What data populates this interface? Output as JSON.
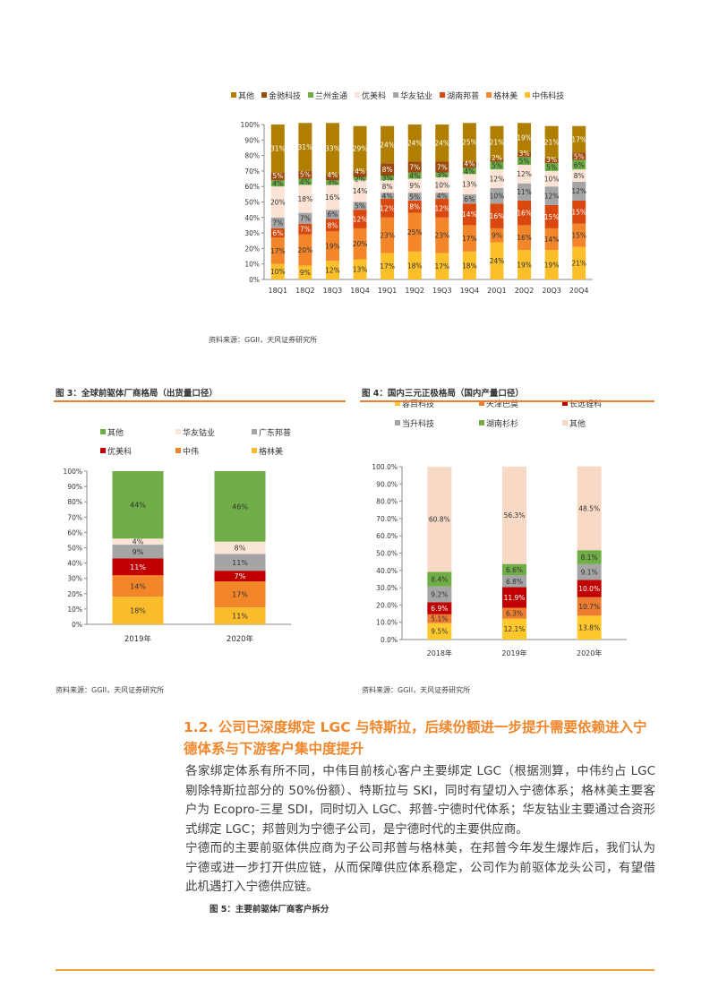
{
  "charts": {
    "fig_top": {
      "source": "资料来源：GGII，天风证券研究所"
    },
    "fig3": {
      "caption": "图 3：全球前驱体厂商格局（出货量口径）",
      "source": "资料来源：GGII，天风证券研究所"
    },
    "fig4": {
      "caption": "图 4：国内三元正极格局（国内产量口径）",
      "source": "资料来源：GGII，天风证券研究所"
    }
  },
  "chart_data": [
    {
      "type": "bar",
      "stacked": true,
      "title": "",
      "xlabel": "",
      "ylabel": "",
      "ylim": [
        0,
        100
      ],
      "grid": false,
      "legend_position": "top",
      "yticks": [
        "0%",
        "10%",
        "20%",
        "30%",
        "40%",
        "50%",
        "60%",
        "70%",
        "80%",
        "90%",
        "100%"
      ],
      "categories": [
        "18Q1",
        "18Q2",
        "18Q3",
        "18Q4",
        "19Q1",
        "19Q2",
        "19Q3",
        "19Q4",
        "20Q1",
        "20Q2",
        "20Q3",
        "20Q4"
      ],
      "legend_order": [
        "其他",
        "金驰科技",
        "兰州金通",
        "优美科",
        "华友钴业",
        "湖南邦普",
        "格林美",
        "中伟科技"
      ],
      "series": [
        {
          "name": "中伟科技",
          "color": "#FBBF2A",
          "values": [
            10,
            9,
            12,
            13,
            17,
            18,
            17,
            18,
            24,
            19,
            19,
            21
          ]
        },
        {
          "name": "格林美",
          "color": "#F3862A",
          "values": [
            17,
            20,
            19,
            20,
            23,
            25,
            23,
            17,
            9,
            16,
            14,
            15
          ]
        },
        {
          "name": "湖南邦普",
          "color": "#D9480F",
          "values": [
            6,
            7,
            8,
            12,
            12,
            8,
            12,
            14,
            16,
            16,
            15,
            15
          ]
        },
        {
          "name": "华友钴业",
          "color": "#A5A5A5",
          "values": [
            7,
            7,
            6,
            5,
            4,
            5,
            4,
            6,
            10,
            11,
            12,
            12
          ]
        },
        {
          "name": "优美科",
          "color": "#FBE4D6",
          "values": [
            20,
            18,
            16,
            14,
            8,
            9,
            10,
            13,
            12,
            12,
            10,
            8
          ]
        },
        {
          "name": "兰州金通",
          "color": "#6AAE45",
          "values": [
            4,
            4,
            3,
            2,
            3,
            4,
            3,
            4,
            5,
            5,
            5,
            6
          ]
        },
        {
          "name": "金驰科技",
          "color": "#9C4A0C",
          "values": [
            5,
            5,
            4,
            4,
            8,
            7,
            7,
            4,
            2,
            3,
            3,
            5
          ]
        },
        {
          "name": "其他",
          "color": "#B07F00",
          "values": [
            31,
            31,
            33,
            29,
            24,
            24,
            24,
            25,
            21,
            19,
            21,
            17
          ]
        }
      ]
    },
    {
      "type": "bar",
      "stacked": true,
      "title": "",
      "xlabel": "",
      "ylabel": "",
      "ylim": [
        0,
        100
      ],
      "grid": false,
      "legend_position": "top",
      "yticks": [
        "0%",
        "10%",
        "20%",
        "30%",
        "40%",
        "50%",
        "60%",
        "70%",
        "80%",
        "90%",
        "100%"
      ],
      "categories": [
        "2019年",
        "2020年"
      ],
      "legend_order": [
        "其他",
        "华友钴业",
        "广东邦普",
        "优美科",
        "中伟",
        "格林美"
      ],
      "series": [
        {
          "name": "格林美",
          "color": "#FBBC2C",
          "values": [
            18,
            11
          ]
        },
        {
          "name": "中伟",
          "color": "#F4862A",
          "values": [
            14,
            17
          ]
        },
        {
          "name": "优美科",
          "color": "#C00000",
          "values": [
            11,
            7
          ]
        },
        {
          "name": "广东邦普",
          "color": "#A5A5A5",
          "values": [
            9,
            11
          ]
        },
        {
          "name": "华友钴业",
          "color": "#FBE5D6",
          "values": [
            4,
            8
          ]
        },
        {
          "name": "其他",
          "color": "#70AD47",
          "values": [
            44,
            46
          ]
        }
      ]
    },
    {
      "type": "bar",
      "stacked": true,
      "title": "",
      "xlabel": "",
      "ylabel": "",
      "ylim": [
        0,
        100
      ],
      "grid": false,
      "legend_position": "top",
      "yticks": [
        "0.0%",
        "10.0%",
        "20.0%",
        "30.0%",
        "40.0%",
        "50.0%",
        "60.0%",
        "70.0%",
        "80.0%",
        "90.0%",
        "100.0%"
      ],
      "label_decimals": 1,
      "categories": [
        "2018年",
        "2019年",
        "2020年"
      ],
      "legend_order": [
        "容百科技",
        "天津巴莫",
        "长远锂科",
        "当升科技",
        "湖南杉杉",
        "其他"
      ],
      "series": [
        {
          "name": "容百科技",
          "color": "#FFC82E",
          "values": [
            9.5,
            12.1,
            13.8
          ]
        },
        {
          "name": "天津巴莫",
          "color": "#ED7D31",
          "values": [
            5.1,
            6.3,
            10.7
          ]
        },
        {
          "name": "长远锂科",
          "color": "#C00000",
          "values": [
            6.9,
            11.9,
            10.0
          ]
        },
        {
          "name": "当升科技",
          "color": "#A5A5A5",
          "values": [
            9.2,
            6.8,
            9.1
          ]
        },
        {
          "name": "湖南杉杉",
          "color": "#70AD47",
          "values": [
            8.4,
            6.6,
            8.1
          ]
        },
        {
          "name": "其他",
          "color": "#F8D9C6",
          "values": [
            60.8,
            56.3,
            48.5
          ]
        }
      ]
    }
  ],
  "section": {
    "heading": "1.2. 公司已深度绑定 LGC 与特斯拉，后续份额进一步提升需要依赖进入宁德体系与下游客户集中度提升",
    "para1": "各家绑定体系有所不同，中伟目前核心客户主要绑定 LGC（根据测算，中伟约占 LGC 剔除特斯拉部分的 50%份额）、特斯拉与 SKI，同时有望切入宁德体系；格林美主要客户为 Ecopro-三星 SDI，同时切入 LGC、邦普-宁德时代体系；华友钴业主要通过合资形式绑定 LGC；邦普则为宁德子公司，是宁德时代的主要供应商。",
    "para2": "宁德而的主要前驱体供应商为子公司邦普与格林美，在邦普今年发生爆炸后，我们认为宁德或进一步打开供应链，从而保障供应体系稳定，公司作为前驱体龙头公司，有望借此机遇打入宁德供应链。",
    "fig5_caption": "图 5：主要前驱体厂商客户拆分"
  }
}
